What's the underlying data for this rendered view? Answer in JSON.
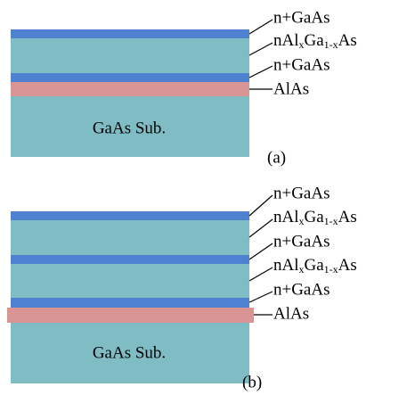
{
  "panels": [
    {
      "caption": "(a)",
      "substrate": "GaAs Sub.",
      "labels": [
        {
          "text": "n+GaAs"
        },
        {
          "parts": [
            "nAl",
            "x",
            "Ga",
            "1-x",
            "As"
          ]
        },
        {
          "text": "n+GaAs"
        },
        {
          "text": "AlAs"
        }
      ]
    },
    {
      "caption": "(b)",
      "substrate": "GaAs Sub.",
      "labels": [
        {
          "text": "n+GaAs"
        },
        {
          "parts": [
            "nAl",
            "x",
            "Ga",
            "1-x",
            "As"
          ]
        },
        {
          "text": "n+GaAs"
        },
        {
          "parts": [
            "nAl",
            "x",
            "Ga",
            "1-x",
            "As"
          ]
        },
        {
          "text": "n+GaAs"
        },
        {
          "text": "AlAs"
        }
      ]
    }
  ]
}
